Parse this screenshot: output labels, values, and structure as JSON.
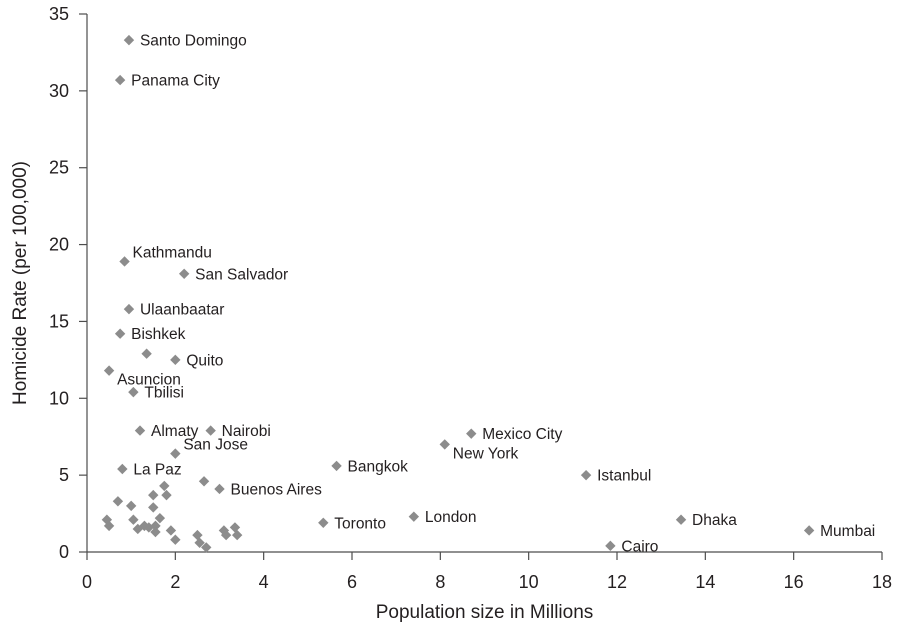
{
  "chart_data": {
    "type": "scatter",
    "title": "",
    "xlabel": "Population size in Millions",
    "ylabel": "Homicide Rate (per 100,000)",
    "xlim": [
      0,
      18
    ],
    "ylim": [
      0,
      35
    ],
    "xticks": [
      "0",
      "2",
      "4",
      "6",
      "8",
      "10",
      "12",
      "14",
      "16",
      "18"
    ],
    "yticks": [
      "0",
      "5",
      "10",
      "15",
      "20",
      "25",
      "30",
      "35"
    ],
    "grid": false,
    "marker_color": "#8c8c8c",
    "marker": "diamond",
    "points": [
      {
        "x": 0.95,
        "y": 33.3,
        "label": "Santo Domingo",
        "pos": "right"
      },
      {
        "x": 0.75,
        "y": 30.7,
        "label": "Panama City",
        "pos": "right"
      },
      {
        "x": 0.85,
        "y": 18.9,
        "label": "Kathmandu",
        "pos": "right-up"
      },
      {
        "x": 2.2,
        "y": 18.1,
        "label": "San Salvador",
        "pos": "right"
      },
      {
        "x": 0.95,
        "y": 15.8,
        "label": "Ulaanbaatar",
        "pos": "right"
      },
      {
        "x": 0.75,
        "y": 14.2,
        "label": "Bishkek",
        "pos": "right"
      },
      {
        "x": 1.35,
        "y": 12.9,
        "label": "",
        "pos": "right"
      },
      {
        "x": 2.0,
        "y": 12.5,
        "label": "Quito",
        "pos": "right"
      },
      {
        "x": 0.5,
        "y": 11.8,
        "label": "Asuncion",
        "pos": "right-down"
      },
      {
        "x": 1.05,
        "y": 10.4,
        "label": "Tbilisi",
        "pos": "right"
      },
      {
        "x": 1.2,
        "y": 7.9,
        "label": "Almaty",
        "pos": "right"
      },
      {
        "x": 2.8,
        "y": 7.9,
        "label": "Nairobi",
        "pos": "right"
      },
      {
        "x": 2.0,
        "y": 6.4,
        "label": "San Jose",
        "pos": "right-up"
      },
      {
        "x": 0.8,
        "y": 5.4,
        "label": "La Paz",
        "pos": "right"
      },
      {
        "x": 2.65,
        "y": 4.6,
        "label": "",
        "pos": "right"
      },
      {
        "x": 3.0,
        "y": 4.1,
        "label": "Buenos Aires",
        "pos": "right"
      },
      {
        "x": 5.65,
        "y": 5.6,
        "label": "Bangkok",
        "pos": "right"
      },
      {
        "x": 8.1,
        "y": 7.0,
        "label": "New York",
        "pos": "right-down"
      },
      {
        "x": 8.7,
        "y": 7.7,
        "label": "Mexico City",
        "pos": "right"
      },
      {
        "x": 11.3,
        "y": 5.0,
        "label": "Istanbul",
        "pos": "right"
      },
      {
        "x": 5.35,
        "y": 1.9,
        "label": "Toronto",
        "pos": "right"
      },
      {
        "x": 7.4,
        "y": 2.3,
        "label": "London",
        "pos": "right"
      },
      {
        "x": 13.45,
        "y": 2.1,
        "label": "Dhaka",
        "pos": "right"
      },
      {
        "x": 11.85,
        "y": 0.4,
        "label": "Cairo",
        "pos": "right"
      },
      {
        "x": 16.35,
        "y": 1.4,
        "label": "Mumbai",
        "pos": "right"
      },
      {
        "x": 0.7,
        "y": 3.3,
        "label": ""
      },
      {
        "x": 1.0,
        "y": 3.0,
        "label": ""
      },
      {
        "x": 0.45,
        "y": 2.1,
        "label": ""
      },
      {
        "x": 0.5,
        "y": 1.7,
        "label": ""
      },
      {
        "x": 1.05,
        "y": 2.1,
        "label": ""
      },
      {
        "x": 1.15,
        "y": 1.5,
        "label": ""
      },
      {
        "x": 1.3,
        "y": 1.7,
        "label": ""
      },
      {
        "x": 1.4,
        "y": 1.6,
        "label": ""
      },
      {
        "x": 1.5,
        "y": 3.7,
        "label": ""
      },
      {
        "x": 1.5,
        "y": 2.9,
        "label": ""
      },
      {
        "x": 1.55,
        "y": 1.7,
        "label": ""
      },
      {
        "x": 1.55,
        "y": 1.3,
        "label": ""
      },
      {
        "x": 1.65,
        "y": 2.2,
        "label": ""
      },
      {
        "x": 1.75,
        "y": 4.3,
        "label": ""
      },
      {
        "x": 1.8,
        "y": 3.7,
        "label": ""
      },
      {
        "x": 1.9,
        "y": 1.4,
        "label": ""
      },
      {
        "x": 2.0,
        "y": 0.8,
        "label": ""
      },
      {
        "x": 2.5,
        "y": 1.1,
        "label": ""
      },
      {
        "x": 2.55,
        "y": 0.6,
        "label": ""
      },
      {
        "x": 2.7,
        "y": 0.3,
        "label": ""
      },
      {
        "x": 3.1,
        "y": 1.4,
        "label": ""
      },
      {
        "x": 3.15,
        "y": 1.1,
        "label": ""
      },
      {
        "x": 3.35,
        "y": 1.6,
        "label": ""
      },
      {
        "x": 3.4,
        "y": 1.1,
        "label": ""
      }
    ]
  }
}
